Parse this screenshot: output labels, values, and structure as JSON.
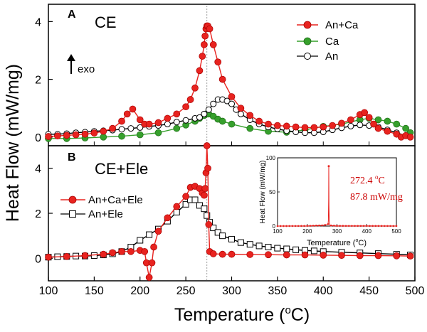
{
  "figure": {
    "ylabel": "Heat Flow (mW/mg)",
    "xlabel_main": "Temperature (",
    "xlabel_degree": "o",
    "xlabel_unit": "C)",
    "xticks": [
      "100",
      "150",
      "200",
      "250",
      "300",
      "350",
      "400",
      "450",
      "500"
    ],
    "xlim": [
      100,
      500
    ],
    "vline_x": 273
  },
  "panelA": {
    "letter": "A",
    "label": "CE",
    "exo_label": "exo",
    "yticks": [
      "0",
      "2",
      "4"
    ],
    "ylim": [
      -0.3,
      4.6
    ],
    "legend": [
      "An+Ca",
      "Ca",
      "An"
    ]
  },
  "panelB": {
    "letter": "B",
    "label": "CE+Ele",
    "yticks": [
      "0",
      "2",
      "4"
    ],
    "ylim": [
      -1.0,
      5.0
    ],
    "legend": [
      "An+Ca+Ele",
      "An+Ele"
    ]
  },
  "inset": {
    "ylabel": "Heat Flow (mW/mg)",
    "xlabel_main": "Temperature (",
    "xlabel_degree": "o",
    "xlabel_unit": "C)",
    "xticks": [
      "100",
      "200",
      "300",
      "400",
      "500"
    ],
    "yticks": [
      "0",
      "50",
      "100"
    ],
    "xlim": [
      100,
      500
    ],
    "ylim": [
      0,
      100
    ],
    "ann_temp_value": "272.4 ",
    "ann_temp_degree": "o",
    "ann_temp_unit": "C",
    "ann_flow": "87.8 mW/mg"
  },
  "colors": {
    "red": "#e8231f",
    "green": "#36a02c",
    "black": "#000000"
  },
  "chart_data": [
    {
      "type": "line",
      "panel": "A",
      "xlim": [
        100,
        500
      ],
      "ylim": [
        -0.3,
        4.6
      ],
      "series": [
        {
          "name": "An+Ca",
          "color": "#e8231f",
          "x": [
            100,
            110,
            120,
            130,
            140,
            150,
            160,
            170,
            180,
            186,
            192,
            200,
            205,
            210,
            220,
            230,
            240,
            250,
            255,
            260,
            265,
            268,
            270,
            271,
            272,
            273,
            274,
            276,
            280,
            285,
            290,
            300,
            310,
            320,
            330,
            340,
            350,
            360,
            370,
            380,
            390,
            400,
            410,
            420,
            430,
            440,
            445,
            450,
            455,
            460,
            470,
            480,
            485,
            490,
            495
          ],
          "y": [
            0.02,
            0.04,
            0.06,
            0.08,
            0.1,
            0.14,
            0.2,
            0.3,
            0.55,
            0.8,
            0.97,
            0.6,
            0.45,
            0.45,
            0.5,
            0.65,
            0.8,
            1.05,
            1.3,
            1.7,
            2.3,
            2.8,
            3.2,
            3.5,
            3.75,
            3.85,
            3.85,
            3.75,
            3.2,
            2.6,
            2.0,
            1.4,
            1.0,
            0.75,
            0.55,
            0.45,
            0.4,
            0.38,
            0.35,
            0.33,
            0.33,
            0.35,
            0.4,
            0.48,
            0.6,
            0.78,
            0.85,
            0.68,
            0.45,
            0.3,
            0.2,
            0.1,
            0.0,
            0.05,
            0.0
          ]
        },
        {
          "name": "Ca",
          "color": "#36a02c",
          "x": [
            100,
            120,
            140,
            160,
            180,
            200,
            220,
            240,
            250,
            260,
            265,
            270,
            272,
            275,
            280,
            285,
            290,
            300,
            320,
            340,
            360,
            380,
            400,
            420,
            440,
            450,
            460,
            470,
            480,
            490,
            495
          ],
          "y": [
            -0.05,
            -0.05,
            -0.03,
            0.0,
            0.03,
            0.08,
            0.15,
            0.3,
            0.42,
            0.55,
            0.65,
            0.75,
            0.8,
            0.8,
            0.72,
            0.62,
            0.55,
            0.45,
            0.3,
            0.2,
            0.17,
            0.25,
            0.37,
            0.45,
            0.6,
            0.65,
            0.6,
            0.55,
            0.45,
            0.3,
            0.15
          ]
        },
        {
          "name": "An",
          "color": "#000000",
          "x": [
            100,
            110,
            120,
            130,
            140,
            150,
            160,
            170,
            180,
            190,
            200,
            210,
            220,
            230,
            240,
            250,
            260,
            265,
            270,
            275,
            280,
            285,
            290,
            295,
            300,
            305,
            310,
            320,
            330,
            340,
            350,
            360,
            370,
            380,
            390,
            400,
            410,
            420,
            430,
            440,
            450,
            460,
            470,
            480,
            490
          ],
          "y": [
            0.1,
            0.1,
            0.12,
            0.15,
            0.17,
            0.2,
            0.22,
            0.24,
            0.27,
            0.3,
            0.33,
            0.37,
            0.4,
            0.45,
            0.52,
            0.58,
            0.65,
            0.68,
            0.8,
            0.95,
            1.15,
            1.3,
            1.3,
            1.25,
            1.15,
            0.95,
            0.8,
            0.6,
            0.45,
            0.35,
            0.28,
            0.22,
            0.18,
            0.15,
            0.15,
            0.18,
            0.25,
            0.32,
            0.38,
            0.42,
            0.4,
            0.35,
            0.25,
            0.15,
            0.05
          ]
        }
      ]
    },
    {
      "type": "line",
      "panel": "B",
      "xlim": [
        100,
        500
      ],
      "ylim": [
        -1.0,
        5.0
      ],
      "series": [
        {
          "name": "An+Ca+Ele",
          "color": "#e8231f",
          "x": [
            100,
            120,
            140,
            160,
            170,
            180,
            190,
            200,
            205,
            207,
            210,
            213,
            215,
            220,
            230,
            240,
            250,
            255,
            260,
            265,
            268,
            270,
            271,
            272,
            273,
            274,
            275,
            276,
            280,
            290,
            300,
            320,
            340,
            360,
            380,
            400,
            420,
            440,
            460,
            480,
            495
          ],
          "y": [
            0.05,
            0.08,
            0.12,
            0.18,
            0.25,
            0.3,
            0.3,
            0.35,
            0.3,
            -0.2,
            -0.85,
            -0.2,
            0.5,
            1.2,
            1.8,
            2.3,
            2.75,
            3.15,
            3.2,
            3.1,
            2.9,
            2.8,
            3.1,
            3.8,
            5.0,
            4.0,
            1.5,
            0.3,
            0.2,
            0.18,
            0.18,
            0.17,
            0.16,
            0.15,
            0.15,
            0.14,
            0.13,
            0.12,
            0.12,
            0.11,
            0.1
          ]
        },
        {
          "name": "An+Ele",
          "color": "#000000",
          "x": [
            100,
            110,
            120,
            130,
            140,
            150,
            160,
            170,
            180,
            190,
            200,
            210,
            220,
            230,
            240,
            250,
            255,
            260,
            265,
            270,
            273,
            276,
            280,
            285,
            290,
            300,
            310,
            320,
            330,
            340,
            350,
            360,
            370,
            380,
            390,
            400,
            420,
            440,
            460,
            480,
            495
          ],
          "y": [
            0.05,
            0.07,
            0.08,
            0.1,
            0.1,
            0.12,
            0.15,
            0.2,
            0.3,
            0.5,
            0.8,
            1.05,
            1.3,
            1.65,
            2.05,
            2.4,
            2.6,
            2.6,
            2.35,
            2.2,
            1.9,
            1.6,
            1.35,
            1.15,
            1.0,
            0.85,
            0.7,
            0.62,
            0.55,
            0.5,
            0.45,
            0.42,
            0.38,
            0.35,
            0.33,
            0.3,
            0.27,
            0.24,
            0.21,
            0.18,
            0.15
          ]
        }
      ]
    },
    {
      "type": "line",
      "panel": "B-inset",
      "xlim": [
        100,
        500
      ],
      "ylim": [
        0,
        100
      ],
      "series": [
        {
          "name": "",
          "color": "#e8231f",
          "x": [
            100,
            200,
            250,
            265,
            270,
            271,
            272,
            272.4,
            273,
            274,
            276,
            280,
            300,
            400,
            500
          ],
          "y": [
            0,
            0.2,
            1.0,
            2.0,
            3.0,
            8.0,
            40.0,
            87.8,
            30.0,
            5.0,
            1.5,
            0.8,
            0.3,
            0.2,
            0.1
          ]
        }
      ]
    }
  ]
}
